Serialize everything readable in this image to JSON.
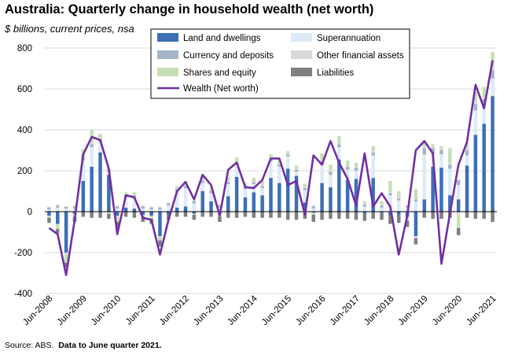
{
  "title": "Australia: Quarterly change in household wealth (net worth)",
  "subtitle": "$ billions, current prices, nsa",
  "source_prefix": "Source: ABS.",
  "source_note": "Data to June quarter 2021.",
  "colors": {
    "land": "#3d6fb6",
    "super": "#dcebf7",
    "currency": "#a5b4c8",
    "other": "#d9d9d9",
    "shares": "#c5e0b4",
    "liabilities": "#7f7f7f",
    "wealth": "#7030a0"
  },
  "chart_data": {
    "type": "bar",
    "stacked": true,
    "ylim": [
      -400,
      800
    ],
    "yticks": [
      -400,
      -200,
      0,
      200,
      400,
      600,
      800
    ],
    "grid": true,
    "legend_position": "top",
    "categories": [
      "Jun-2008",
      "Sep-2008",
      "Dec-2008",
      "Mar-2009",
      "Jun-2009",
      "Sep-2009",
      "Dec-2009",
      "Mar-2010",
      "Jun-2010",
      "Sep-2010",
      "Dec-2010",
      "Mar-2011",
      "Jun-2011",
      "Sep-2011",
      "Dec-2011",
      "Mar-2012",
      "Jun-2012",
      "Sep-2012",
      "Dec-2012",
      "Mar-2013",
      "Jun-2013",
      "Sep-2013",
      "Dec-2013",
      "Mar-2014",
      "Jun-2014",
      "Sep-2014",
      "Dec-2014",
      "Mar-2015",
      "Jun-2015",
      "Sep-2015",
      "Dec-2015",
      "Mar-2016",
      "Jun-2016",
      "Sep-2016",
      "Dec-2016",
      "Mar-2017",
      "Jun-2017",
      "Sep-2017",
      "Dec-2017",
      "Mar-2018",
      "Jun-2018",
      "Sep-2018",
      "Dec-2018",
      "Mar-2019",
      "Jun-2019",
      "Sep-2019",
      "Dec-2019",
      "Mar-2020",
      "Jun-2020",
      "Sep-2020",
      "Dec-2020",
      "Mar-2021",
      "Jun-2021"
    ],
    "xtick_labels": [
      "Jun-2008",
      "Jun-2009",
      "Jun-2010",
      "Jun-2011",
      "Jun-2012",
      "Jun-2013",
      "Jun-2014",
      "Jun-2015",
      "Jun-2016",
      "Jun-2017",
      "Jun-2018",
      "Jun-2019",
      "Jun-2020",
      "Jun-2021"
    ],
    "series": [
      {
        "name": "Land and dwellings",
        "key": "land",
        "type": "bar",
        "values": [
          -20,
          -60,
          -200,
          -10,
          150,
          220,
          290,
          180,
          -20,
          20,
          15,
          -15,
          -20,
          -120,
          -15,
          20,
          25,
          -10,
          100,
          50,
          -10,
          75,
          170,
          70,
          95,
          80,
          165,
          140,
          210,
          175,
          45,
          -5,
          140,
          120,
          255,
          155,
          160,
          -10,
          165,
          -5,
          -20,
          -15,
          -25,
          -120,
          60,
          220,
          215,
          80,
          60,
          225,
          375,
          430,
          565
        ]
      },
      {
        "name": "Superannuation",
        "key": "super",
        "type": "bar",
        "values": [
          10,
          20,
          15,
          15,
          100,
          95,
          50,
          15,
          15,
          50,
          55,
          15,
          10,
          10,
          30,
          80,
          90,
          40,
          40,
          40,
          20,
          60,
          60,
          40,
          40,
          35,
          80,
          80,
          60,
          20,
          60,
          15,
          90,
          60,
          60,
          50,
          40,
          25,
          110,
          20,
          80,
          55,
          20,
          50,
          220,
          60,
          65,
          130,
          70,
          50,
          120,
          90,
          85
        ]
      },
      {
        "name": "Currency and deposits",
        "key": "currency",
        "type": "bar",
        "values": [
          10,
          10,
          10,
          10,
          15,
          15,
          15,
          10,
          10,
          10,
          10,
          10,
          10,
          10,
          10,
          10,
          10,
          10,
          10,
          10,
          10,
          10,
          10,
          10,
          10,
          10,
          10,
          10,
          10,
          10,
          10,
          10,
          15,
          15,
          15,
          15,
          15,
          10,
          15,
          10,
          10,
          10,
          10,
          10,
          30,
          30,
          20,
          20,
          25,
          25,
          30,
          30,
          40
        ]
      },
      {
        "name": "Other financial assets",
        "key": "other",
        "type": "bar",
        "values": [
          5,
          5,
          -10,
          5,
          10,
          10,
          5,
          5,
          5,
          5,
          5,
          5,
          5,
          5,
          5,
          5,
          5,
          5,
          5,
          5,
          5,
          5,
          5,
          5,
          5,
          5,
          5,
          5,
          5,
          5,
          5,
          5,
          10,
          10,
          10,
          5,
          5,
          5,
          10,
          5,
          5,
          5,
          -10,
          -10,
          10,
          10,
          10,
          10,
          -20,
          10,
          15,
          15,
          20
        ]
      },
      {
        "name": "Shares and equity",
        "key": "shares",
        "type": "bar",
        "values": [
          -10,
          -25,
          -40,
          -15,
          30,
          60,
          20,
          -10,
          -30,
          10,
          10,
          -10,
          -15,
          -20,
          0,
          10,
          20,
          -5,
          25,
          15,
          -15,
          20,
          20,
          15,
          15,
          20,
          20,
          20,
          10,
          15,
          15,
          -10,
          30,
          25,
          30,
          25,
          20,
          10,
          20,
          15,
          55,
          30,
          -10,
          50,
          20,
          10,
          10,
          70,
          -60,
          25,
          45,
          45,
          70
        ]
      },
      {
        "name": "Liabilities",
        "key": "liabilities",
        "type": "bar",
        "values": [
          -25,
          -20,
          -20,
          -25,
          -25,
          -30,
          -30,
          -25,
          -25,
          -25,
          -30,
          -25,
          -25,
          -30,
          -25,
          -25,
          -25,
          -25,
          -25,
          -25,
          -25,
          -30,
          -30,
          -25,
          -30,
          -30,
          -30,
          -30,
          -40,
          -40,
          -35,
          -35,
          -40,
          -35,
          -35,
          -35,
          -40,
          -35,
          -35,
          -35,
          -40,
          -40,
          -30,
          -30,
          -30,
          -35,
          -35,
          -30,
          -35,
          -30,
          -35,
          -35,
          -50
        ]
      },
      {
        "name": "Wealth (Net worth)",
        "key": "wealth",
        "type": "line",
        "values": [
          -80,
          -110,
          -310,
          -40,
          280,
          365,
          350,
          210,
          -110,
          80,
          70,
          -30,
          -40,
          -210,
          -40,
          100,
          145,
          60,
          180,
          130,
          -20,
          205,
          240,
          120,
          115,
          155,
          260,
          260,
          130,
          150,
          -15,
          275,
          230,
          345,
          240,
          160,
          30,
          285,
          25,
          90,
          25,
          -210,
          -20,
          300,
          345,
          285,
          -255,
          -10,
          230,
          340,
          620,
          505,
          740
        ]
      }
    ]
  }
}
